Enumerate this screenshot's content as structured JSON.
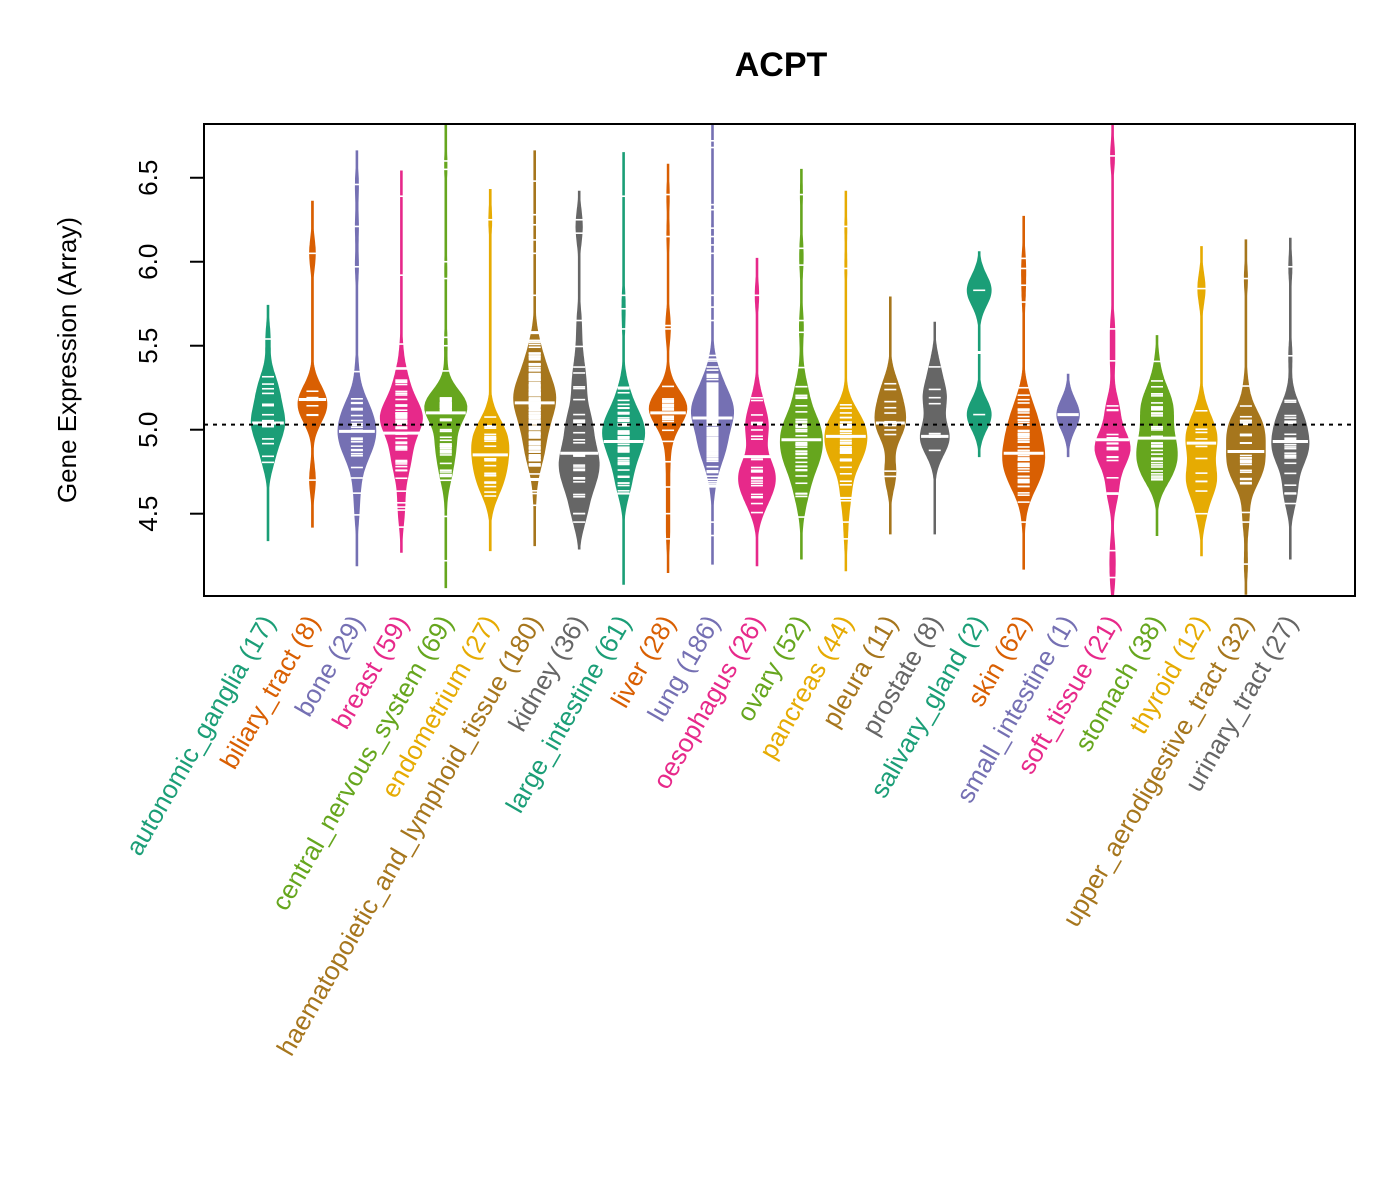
{
  "chart_data": {
    "type": "beanplot",
    "title": "ACPT",
    "xlabel": "",
    "ylabel": "Gene Expression (Array)",
    "ylim": [
      4.01,
      6.82
    ],
    "yticks": [
      4.5,
      5.0,
      5.5,
      6.0,
      6.5
    ],
    "ytick_labels": [
      "4.5",
      "5.0",
      "5.5",
      "6.0",
      "6.5"
    ],
    "reference_line": 5.03,
    "grid": false,
    "legend": "none",
    "palette": [
      "#1B9E77",
      "#D95F02",
      "#7570B3",
      "#E7298A",
      "#66A61E",
      "#E6AB02",
      "#A6761D",
      "#666666"
    ],
    "groups": [
      {
        "name": "autonomic_ganglia",
        "n": 17,
        "label": "autonomic_ganglia (17)",
        "color": "#1B9E77",
        "median": 5.04,
        "min": 4.34,
        "max": 5.74,
        "body": [
          4.55,
          5.5
        ],
        "outliers": [
          5.54
        ]
      },
      {
        "name": "biliary_tract",
        "n": 8,
        "label": "biliary_tract (8)",
        "color": "#D95F02",
        "median": 5.18,
        "min": 4.42,
        "max": 6.36,
        "body": [
          4.85,
          5.35
        ],
        "outliers": [
          6.05,
          4.7
        ]
      },
      {
        "name": "bone",
        "n": 29,
        "label": "bone (29)",
        "color": "#7570B3",
        "median": 4.99,
        "min": 4.19,
        "max": 6.66,
        "body": [
          4.35,
          5.45
        ],
        "outliers": [
          6.46,
          6.21,
          5.97
        ]
      },
      {
        "name": "breast",
        "n": 59,
        "label": "breast (59)",
        "color": "#E7298A",
        "median": 4.98,
        "min": 4.27,
        "max": 6.54,
        "body": [
          4.45,
          5.45
        ],
        "outliers": [
          6.39,
          5.92,
          5.51,
          4.42
        ]
      },
      {
        "name": "central_nervous_system",
        "n": 69,
        "label": "central_nervous_system (69)",
        "color": "#66A61E",
        "median": 5.1,
        "min": 4.06,
        "max": 6.82,
        "body": [
          4.35,
          5.25
        ],
        "outliers": [
          6.6,
          6.55,
          6.0,
          5.9,
          5.55,
          5.5,
          5.35,
          4.22
        ]
      },
      {
        "name": "endometrium",
        "n": 27,
        "label": "endometrium (27)",
        "color": "#E6AB02",
        "median": 4.85,
        "min": 4.28,
        "max": 6.43,
        "body": [
          4.4,
          5.3
        ],
        "outliers": [
          6.25
        ]
      },
      {
        "name": "haematopoietic_and_lymphoid_tissue",
        "n": 180,
        "label": "haematopoietic_and_lymphoid_tissue (180)",
        "color": "#A6761D",
        "median": 5.16,
        "min": 4.31,
        "max": 6.66,
        "body": [
          4.55,
          5.7
        ],
        "outliers": [
          6.48,
          6.28,
          6.22,
          6.13,
          6.05,
          5.8,
          4.62,
          4.55
        ]
      },
      {
        "name": "kidney",
        "n": 36,
        "label": "kidney (36)",
        "color": "#666666",
        "median": 4.86,
        "min": 4.29,
        "max": 6.42,
        "body": [
          4.4,
          5.85
        ],
        "outliers": [
          6.25,
          6.17,
          5.65,
          4.5,
          4.45
        ]
      },
      {
        "name": "large_intestine",
        "n": 61,
        "label": "large_intestine (61)",
        "color": "#1B9E77",
        "median": 4.93,
        "min": 4.08,
        "max": 6.65,
        "body": [
          4.35,
          5.45
        ],
        "outliers": [
          6.39,
          5.8,
          5.72,
          5.6
        ]
      },
      {
        "name": "liver",
        "n": 28,
        "label": "liver (28)",
        "color": "#D95F02",
        "median": 5.1,
        "min": 4.15,
        "max": 6.58,
        "body": [
          4.35,
          5.3
        ],
        "outliers": [
          6.4,
          6.15,
          5.62,
          5.6,
          4.35
        ]
      },
      {
        "name": "lung",
        "n": 186,
        "label": "lung (186)",
        "color": "#7570B3",
        "median": 5.07,
        "min": 4.2,
        "max": 6.82,
        "body": [
          4.45,
          5.5
        ],
        "outliers": [
          6.72,
          6.68,
          6.34,
          6.31,
          6.2,
          6.15,
          6.1,
          6.05,
          5.8,
          5.73,
          5.65,
          4.45,
          4.37
        ]
      },
      {
        "name": "oesophagus",
        "n": 26,
        "label": "oesophagus (26)",
        "color": "#E7298A",
        "median": 4.84,
        "min": 4.19,
        "max": 6.02,
        "body": [
          4.35,
          5.4
        ],
        "outliers": [
          5.8
        ]
      },
      {
        "name": "ovary",
        "n": 52,
        "label": "ovary (52)",
        "color": "#66A61E",
        "median": 4.94,
        "min": 4.23,
        "max": 6.55,
        "body": [
          4.45,
          5.35
        ],
        "outliers": [
          6.4,
          6.08,
          5.98,
          5.65,
          5.58,
          5.37,
          4.48
        ]
      },
      {
        "name": "pancreas",
        "n": 44,
        "label": "pancreas (44)",
        "color": "#E6AB02",
        "median": 4.96,
        "min": 4.16,
        "max": 6.42,
        "body": [
          4.4,
          5.4
        ],
        "outliers": [
          6.21,
          5.96,
          4.45,
          4.35
        ]
      },
      {
        "name": "pleura",
        "n": 11,
        "label": "pleura (11)",
        "color": "#A6761D",
        "median": 5.04,
        "min": 4.38,
        "max": 5.79,
        "body": [
          4.45,
          5.75
        ],
        "outliers": []
      },
      {
        "name": "prostate",
        "n": 8,
        "label": "prostate (8)",
        "color": "#666666",
        "median": 4.96,
        "min": 4.38,
        "max": 5.64,
        "body": [
          4.55,
          5.45
        ],
        "outliers": []
      },
      {
        "name": "salivary_gland",
        "n": 2,
        "label": "salivary_gland (2)",
        "color": "#1B9E77",
        "median": 5.46,
        "min": 4.84,
        "max": 6.06,
        "body": [
          4.9,
          6.0
        ],
        "outliers": [
          5.83,
          5.09
        ]
      },
      {
        "name": "skin",
        "n": 62,
        "label": "skin (62)",
        "color": "#D95F02",
        "median": 4.86,
        "min": 4.17,
        "max": 6.27,
        "body": [
          4.3,
          5.35
        ],
        "outliers": [
          6.02,
          5.96,
          5.86,
          5.76,
          5.25,
          4.45
        ]
      },
      {
        "name": "small_intestine",
        "n": 1,
        "label": "small_intestine (1)",
        "color": "#7570B3",
        "median": 5.09,
        "min": 4.84,
        "max": 5.33,
        "body": [
          4.9,
          5.3
        ],
        "outliers": [
          5.09
        ]
      },
      {
        "name": "soft_tissue",
        "n": 21,
        "label": "soft_tissue (21)",
        "color": "#E7298A",
        "median": 4.94,
        "min": 4.01,
        "max": 6.82,
        "body": [
          4.5,
          5.6
        ],
        "outliers": [
          6.63,
          5.6,
          5.41,
          4.28,
          4.12
        ]
      },
      {
        "name": "stomach",
        "n": 38,
        "label": "stomach (38)",
        "color": "#66A61E",
        "median": 4.95,
        "min": 4.37,
        "max": 5.56,
        "body": [
          4.45,
          5.45
        ],
        "outliers": []
      },
      {
        "name": "thyroid",
        "n": 12,
        "label": "thyroid (12)",
        "color": "#E6AB02",
        "median": 4.92,
        "min": 4.25,
        "max": 6.09,
        "body": [
          4.4,
          5.4
        ],
        "outliers": [
          5.84,
          4.5
        ]
      },
      {
        "name": "upper_aerodigestive_tract",
        "n": 32,
        "label": "upper_aerodigestive_tract (32)",
        "color": "#A6761D",
        "median": 4.87,
        "min": 4.02,
        "max": 6.13,
        "body": [
          4.4,
          5.35
        ],
        "outliers": [
          5.9,
          5.26,
          4.45,
          4.2
        ]
      },
      {
        "name": "urinary_tract",
        "n": 27,
        "label": "urinary_tract (27)",
        "color": "#666666",
        "median": 4.93,
        "min": 4.23,
        "max": 6.14,
        "body": [
          4.35,
          5.5
        ],
        "outliers": [
          5.97,
          5.44
        ]
      }
    ]
  }
}
